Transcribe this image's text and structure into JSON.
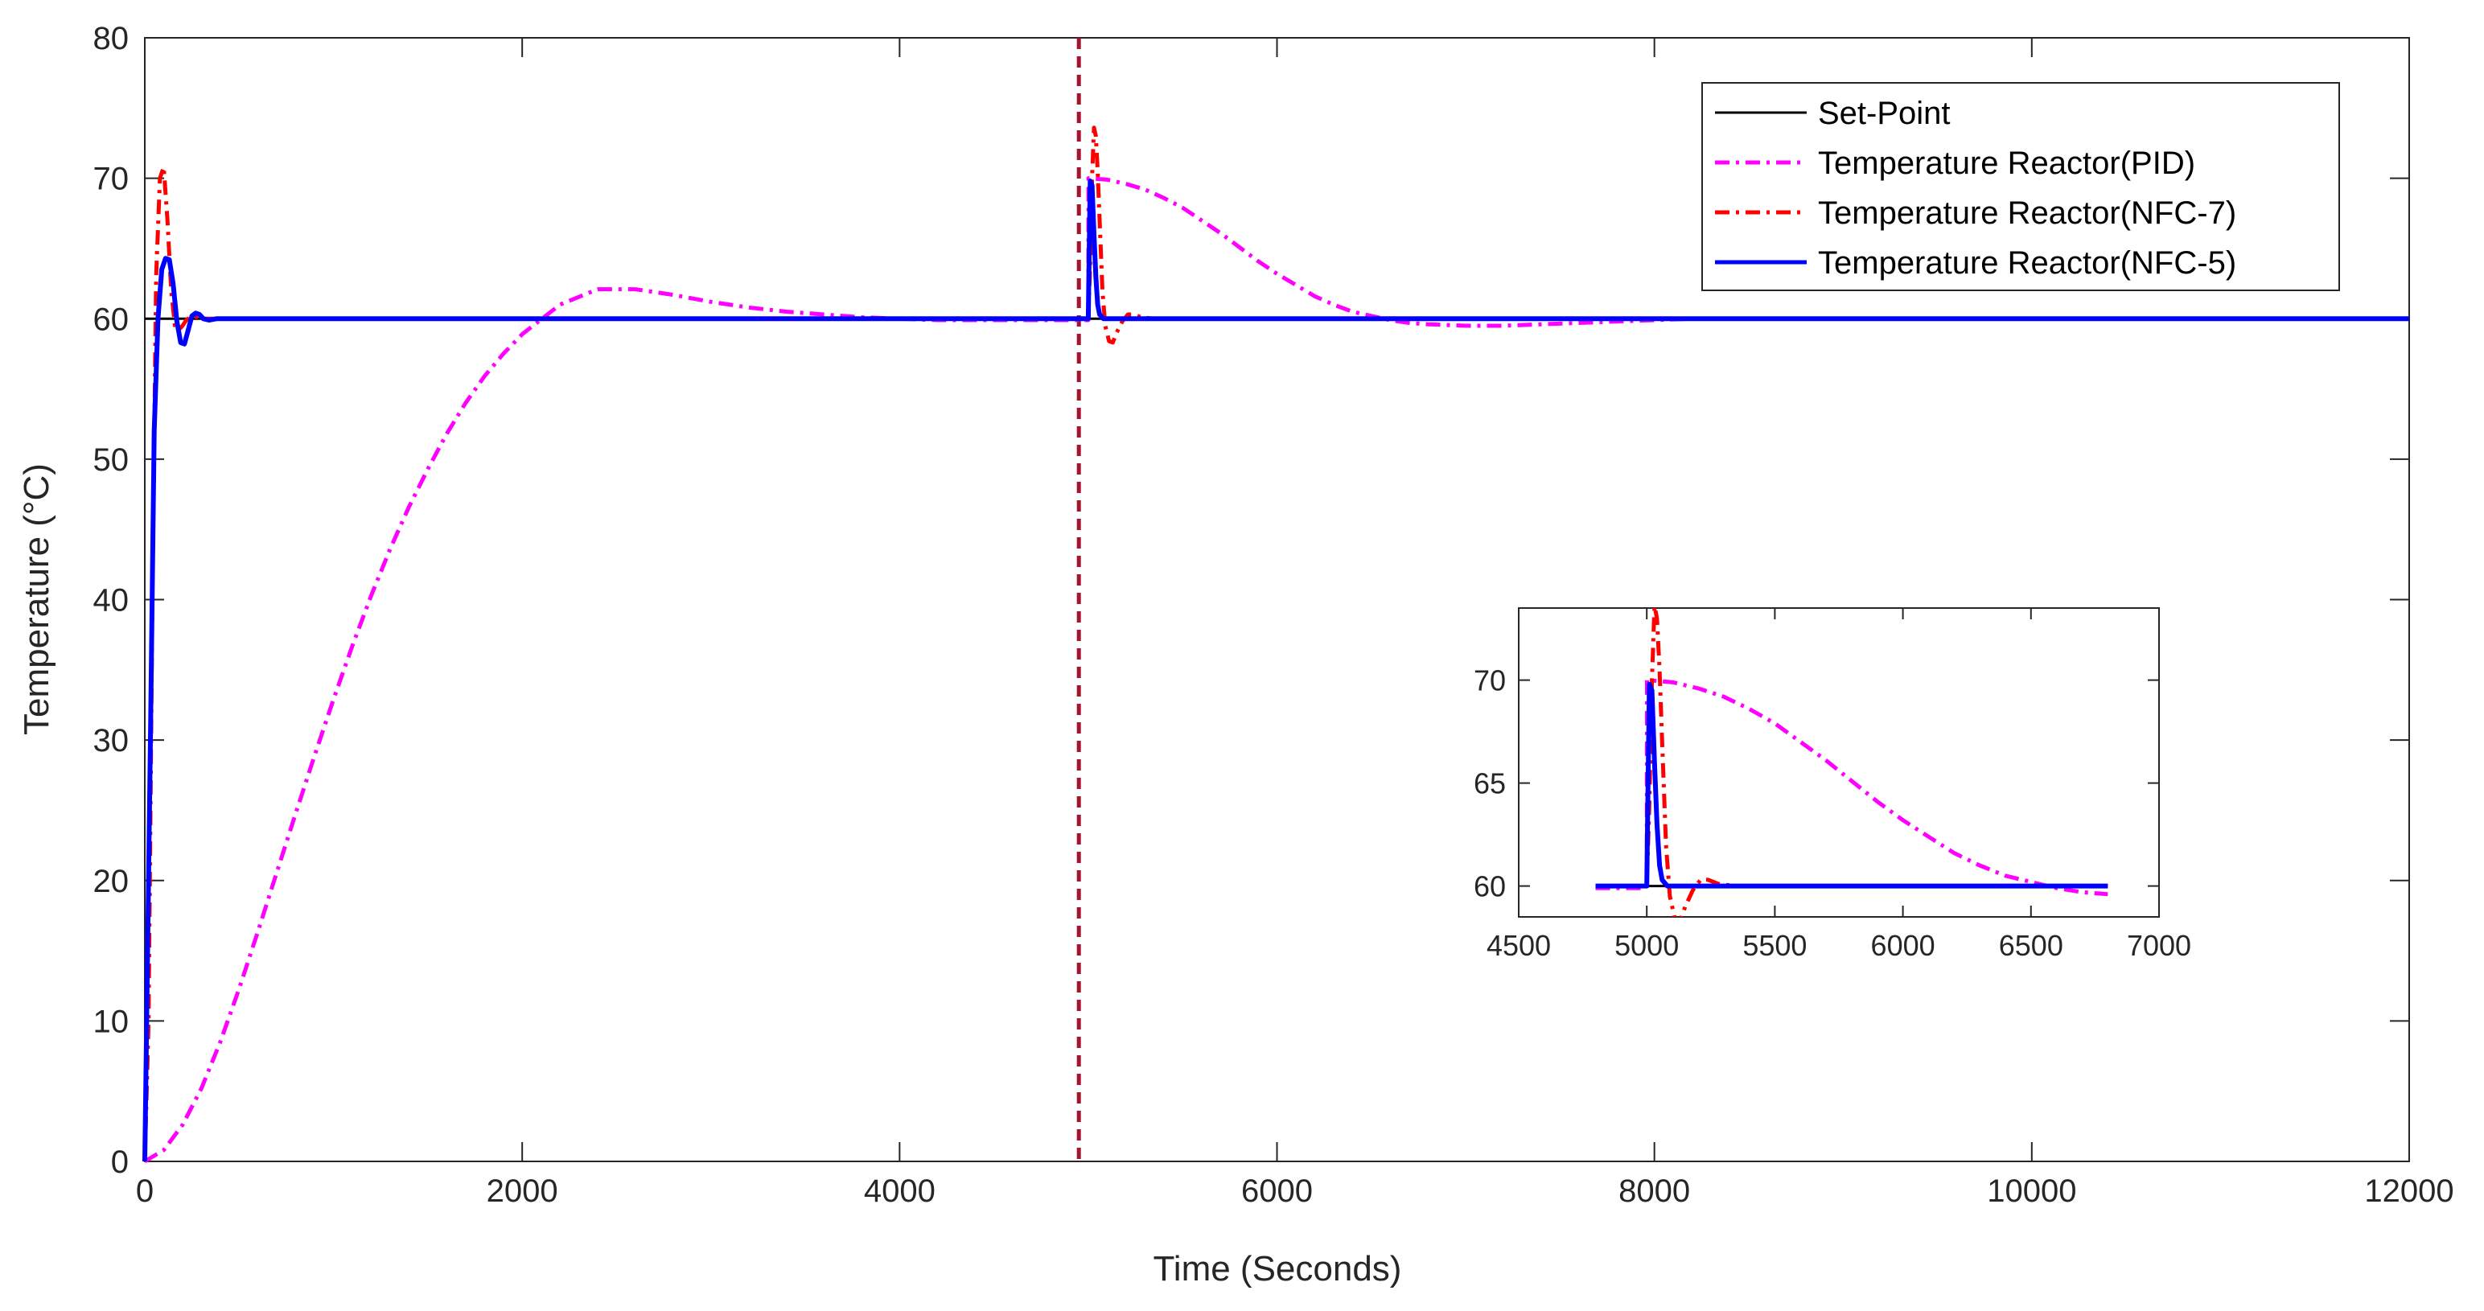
{
  "chart_data": {
    "type": "line",
    "title": "",
    "xlabel": "Time (Seconds)",
    "ylabel": "Temperature (°C)",
    "xlim": [
      0,
      12000
    ],
    "ylim": [
      0,
      80
    ],
    "x_ticks": [
      "0",
      "2000",
      "4000",
      "6000",
      "8000",
      "10000",
      "12000"
    ],
    "y_ticks": [
      "0",
      "10",
      "20",
      "30",
      "40",
      "50",
      "60",
      "70",
      "80"
    ],
    "x_tick_values": [
      0,
      2000,
      4000,
      6000,
      8000,
      10000,
      12000
    ],
    "y_tick_values": [
      0,
      10,
      20,
      30,
      40,
      50,
      60,
      70,
      80
    ],
    "grid": false,
    "legend_position": "top-right",
    "disturbance_line": {
      "x": 4950,
      "color": "#a2142f",
      "style": "dashed"
    },
    "series": [
      {
        "name": "Set-Point",
        "color": "#000000",
        "style": "solid",
        "x": [
          0,
          12000
        ],
        "values": [
          60,
          60
        ]
      },
      {
        "name": "Temperature Reactor(PID)",
        "color": "#ff00ff",
        "style": "dashdot",
        "x": [
          0,
          100,
          200,
          300,
          400,
          500,
          600,
          700,
          800,
          900,
          1000,
          1100,
          1200,
          1300,
          1400,
          1500,
          1600,
          1700,
          1800,
          1900,
          2000,
          2200,
          2400,
          2600,
          2800,
          3000,
          3200,
          3400,
          3600,
          3800,
          4000,
          4200,
          4400,
          4600,
          4800,
          5000,
          5001,
          5100,
          5200,
          5300,
          5400,
          5500,
          5600,
          5700,
          5800,
          5900,
          6000,
          6100,
          6200,
          6300,
          6400,
          6500,
          6600,
          6700,
          6800,
          7000,
          7200,
          7400,
          7600,
          7800,
          8000,
          8200,
          8400,
          8600,
          8800,
          9000,
          9500,
          10000,
          11000,
          12000
        ],
        "values": [
          0,
          0.8,
          2.6,
          5.2,
          8.5,
          12.3,
          16.4,
          20.6,
          24.8,
          28.9,
          32.9,
          36.7,
          40.3,
          43.6,
          46.6,
          49.3,
          51.8,
          54.0,
          55.9,
          57.5,
          58.9,
          61.0,
          62.1,
          62.1,
          61.7,
          61.2,
          60.8,
          60.5,
          60.3,
          60.1,
          60.0,
          59.9,
          59.9,
          59.9,
          59.9,
          59.9,
          70,
          69.9,
          69.6,
          69.2,
          68.6,
          67.9,
          67.0,
          66.1,
          65.1,
          64.1,
          63.2,
          62.4,
          61.6,
          61.0,
          60.5,
          60.2,
          59.9,
          59.7,
          59.6,
          59.5,
          59.5,
          59.6,
          59.7,
          59.8,
          59.9,
          60.0,
          60.0,
          60.0,
          60.0,
          60.0,
          60.0,
          60.0,
          60.0,
          60.0
        ]
      },
      {
        "name": "Temperature Reactor(NFC-7)",
        "color": "#ff0000",
        "style": "dashdot",
        "x": [
          0,
          20,
          40,
          60,
          80,
          100,
          120,
          140,
          160,
          180,
          200,
          220,
          250,
          280,
          320,
          400,
          500,
          600,
          4990,
          5000,
          5010,
          5020,
          5030,
          5040,
          5050,
          5060,
          5075,
          5090,
          5110,
          5130,
          5150,
          5180,
          5210,
          5240,
          5280,
          5350,
          5500,
          12000
        ],
        "values": [
          0,
          10,
          40,
          63,
          70,
          70.8,
          67,
          62,
          59.5,
          59.2,
          59.5,
          59.9,
          60.2,
          60.1,
          60.0,
          60.0,
          60.0,
          60.0,
          60.0,
          60.0,
          64,
          70,
          73.6,
          73.0,
          70.5,
          67,
          62,
          59.5,
          58.4,
          58.3,
          59.0,
          59.8,
          60.3,
          60.3,
          60.1,
          60.0,
          60.0,
          60.0
        ]
      },
      {
        "name": "Temperature Reactor(NFC-5)",
        "color": "#0000ff",
        "style": "solid",
        "x": [
          0,
          30,
          50,
          70,
          90,
          110,
          130,
          150,
          170,
          190,
          210,
          230,
          250,
          270,
          290,
          310,
          340,
          380,
          450,
          600,
          4990,
          5000,
          5005,
          5010,
          5020,
          5030,
          5040,
          5050,
          5060,
          5080,
          5100,
          5150,
          5200,
          12000
        ],
        "values": [
          0,
          30,
          52,
          60,
          63.5,
          64.3,
          64.2,
          62.5,
          59.8,
          58.3,
          58.2,
          59.2,
          60.2,
          60.4,
          60.3,
          60.0,
          59.9,
          60.0,
          60.0,
          60.0,
          60.0,
          60.0,
          65,
          69.8,
          69.5,
          66,
          63,
          61,
          60.3,
          60.0,
          60.0,
          60.0,
          60.0,
          60.0
        ]
      }
    ],
    "inset": {
      "xlim": [
        4500,
        7000
      ],
      "ylim": [
        58.5,
        73.5
      ],
      "x_ticks": [
        "4500",
        "5000",
        "5500",
        "6000",
        "6500",
        "7000"
      ],
      "y_ticks": [
        "60",
        "65",
        "70"
      ],
      "x_tick_values": [
        4500,
        5000,
        5500,
        6000,
        6500,
        7000
      ],
      "y_tick_values": [
        60,
        65,
        70
      ],
      "data_x_range": [
        4800,
        6800
      ]
    }
  }
}
